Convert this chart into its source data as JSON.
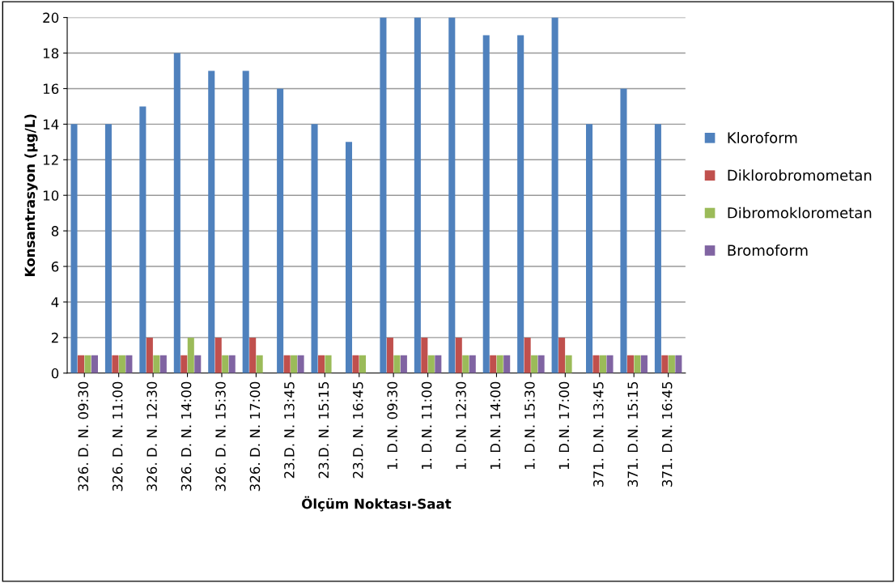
{
  "chart_data": {
    "type": "bar",
    "xlabel": "Ölçüm Noktası-Saat",
    "ylabel": "Konsantrasyon (µg/L)",
    "categories": [
      "326. D. N. 09:30",
      "326. D. N. 11:00",
      "326. D. N. 12:30",
      "326. D. N. 14:00",
      "326. D. N. 15:30",
      "326. D. N. 17:00",
      "23.D. N. 13:45",
      "23.D. N. 15:15",
      "23.D. N. 16:45",
      "1. D.N. 09:30",
      "1. D.N. 11:00",
      "1. D.N. 12:30",
      "1. D.N. 14:00",
      "1. D.N. 15:30",
      "1. D.N. 17:00",
      "371. D.N. 13:45",
      "371. D.N. 15:15",
      "371. D.N. 16:45"
    ],
    "series": [
      {
        "name": "Kloroform",
        "color": "#4f81bd",
        "values": [
          14,
          14,
          15,
          18,
          17,
          17,
          16,
          14,
          13,
          20,
          20,
          20,
          19,
          19,
          20,
          14,
          16,
          14
        ]
      },
      {
        "name": "Diklorobromometan",
        "color": "#c0504d",
        "values": [
          1,
          1,
          2,
          1,
          2,
          2,
          1,
          1,
          1,
          2,
          2,
          2,
          1,
          2,
          2,
          1,
          1,
          1
        ]
      },
      {
        "name": "Dibromoklorometan",
        "color": "#9bbb59",
        "values": [
          1,
          1,
          1,
          2,
          1,
          1,
          1,
          1,
          1,
          1,
          1,
          1,
          1,
          1,
          1,
          1,
          1,
          1
        ]
      },
      {
        "name": "Bromoform",
        "color": "#8064a2",
        "values": [
          1,
          1,
          1,
          1,
          1,
          0,
          1,
          0,
          0,
          1,
          1,
          1,
          1,
          1,
          0,
          1,
          1,
          1
        ]
      }
    ],
    "ylim": [
      0,
      20
    ],
    "yticks": [
      0,
      2,
      4,
      6,
      8,
      10,
      12,
      14,
      16,
      18,
      20
    ],
    "grid": "y",
    "legend": "right"
  }
}
